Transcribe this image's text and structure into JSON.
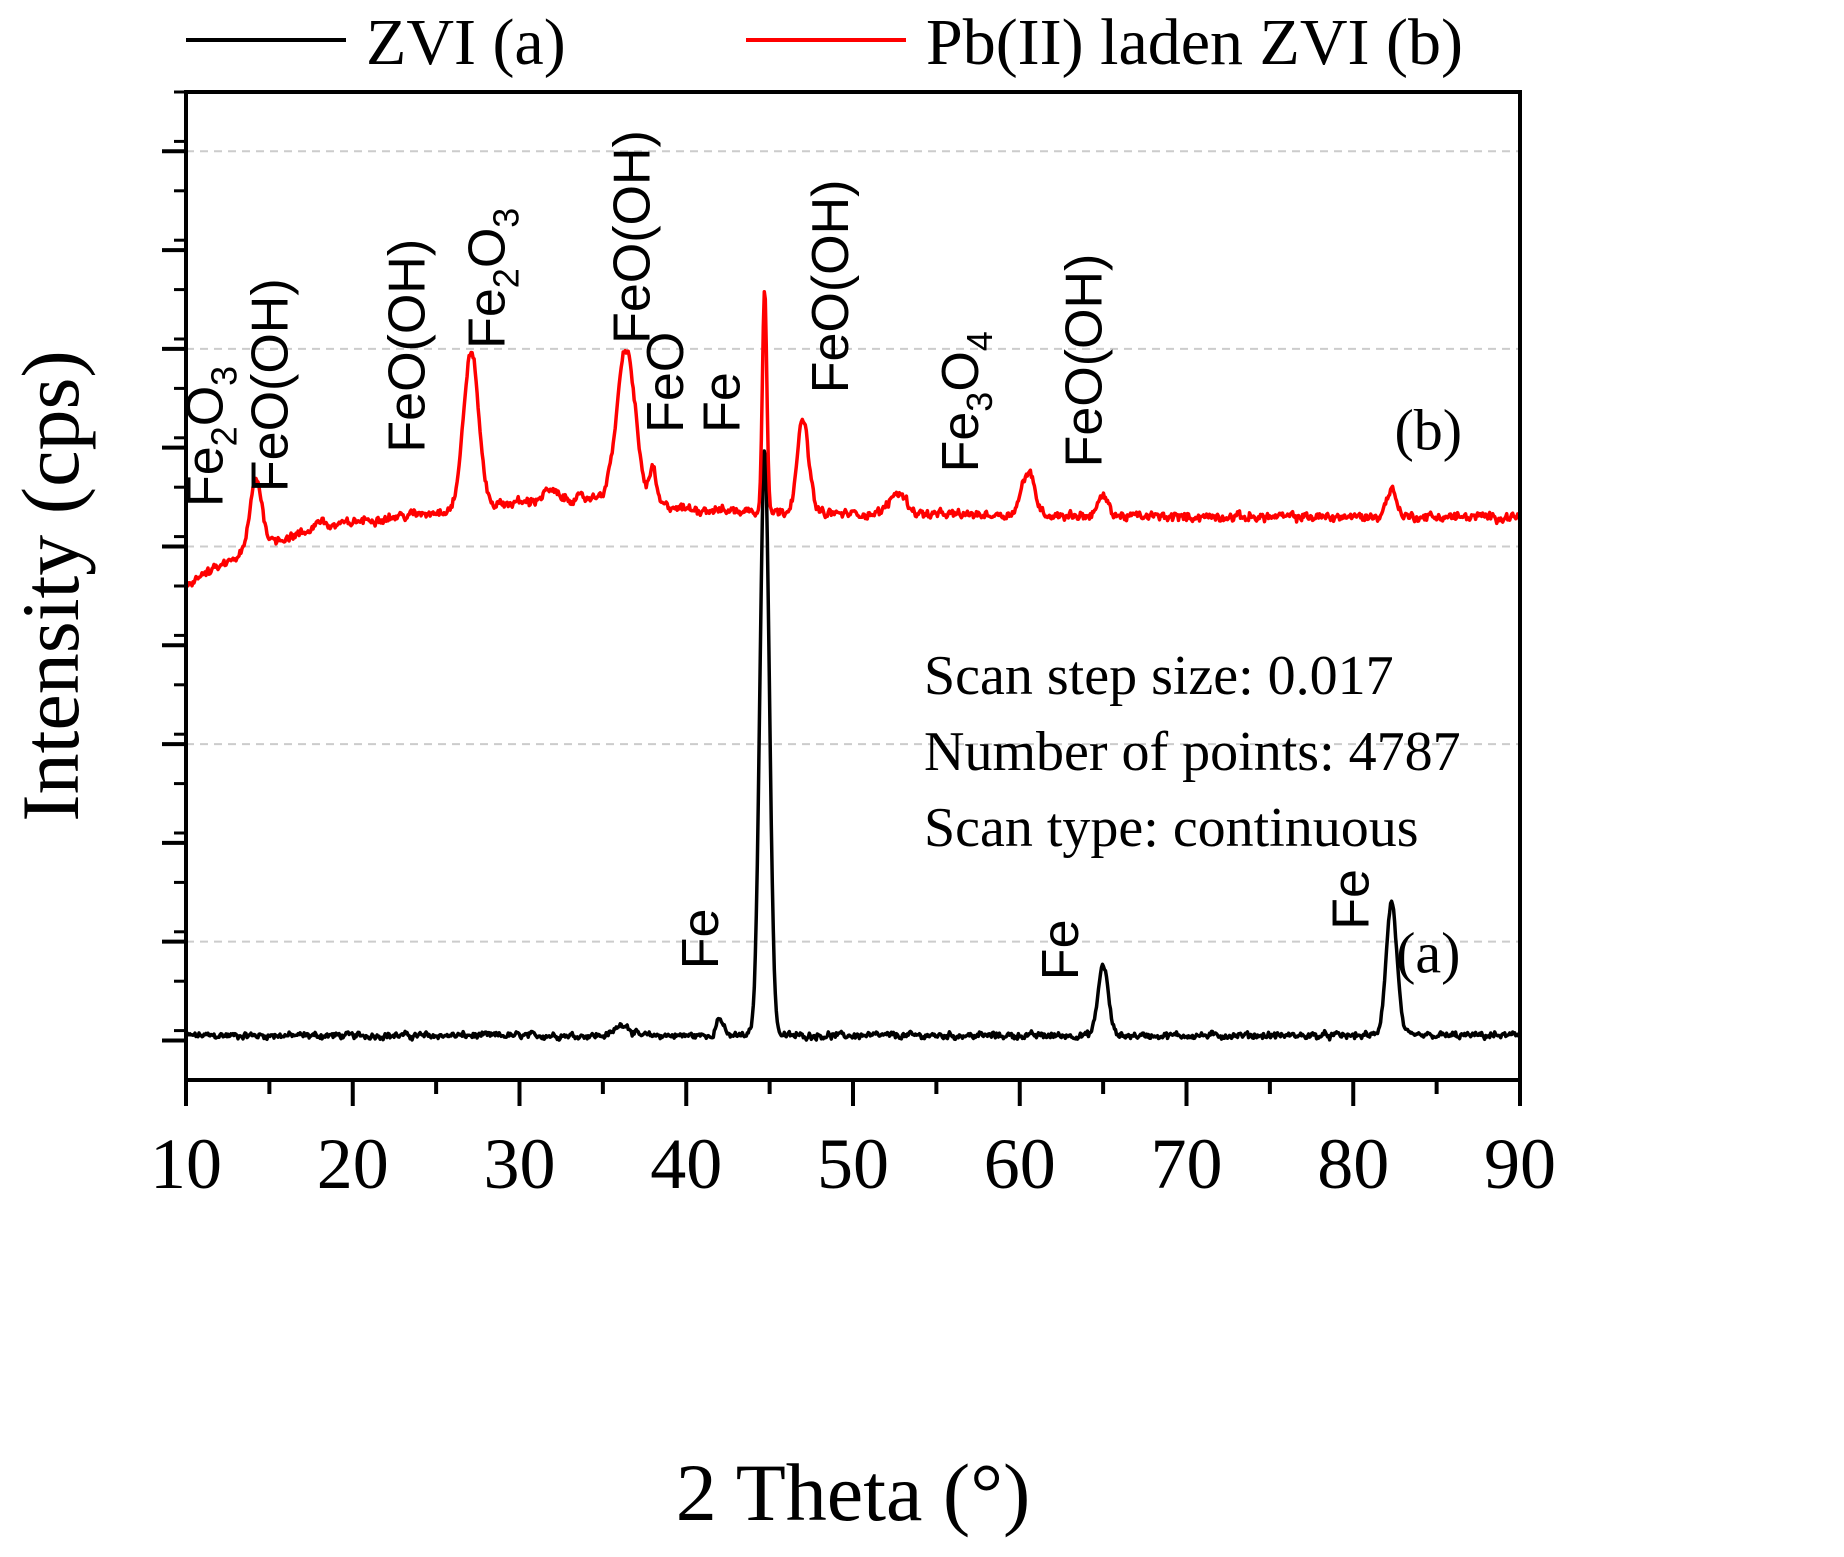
{
  "chart_data": {
    "type": "line",
    "title": "",
    "xlabel": "2 Theta (°)",
    "ylabel": "Intensity (cps)",
    "xlim": [
      10,
      90
    ],
    "x_ticks": [
      10,
      20,
      30,
      40,
      50,
      60,
      70,
      80,
      90
    ],
    "x_tick_labels": [
      "10",
      "20",
      "30",
      "40",
      "50",
      "60",
      "70",
      "80",
      "90"
    ],
    "ylim": [
      -0.4,
      9.6
    ],
    "y_major_ticks": [
      0,
      1,
      2,
      3,
      4,
      5,
      6,
      7,
      8,
      9
    ],
    "y_tick_labels_shown": false,
    "grid": "horizontal dashed",
    "legend_position": "top, above plot",
    "colors": {
      "series_a": "#000000",
      "series_b": "#ff0000",
      "grid": "#cccccc",
      "axis": "#000000"
    },
    "series": [
      {
        "name": "ZVI (a)",
        "id": "a",
        "color": "#000000",
        "baseline": 0.05,
        "noise": 0.045,
        "peaks": [
          {
            "x": 44.7,
            "height": 5.95,
            "width": 0.28
          },
          {
            "x": 65.0,
            "height": 0.72,
            "width": 0.3
          },
          {
            "x": 82.3,
            "height": 1.35,
            "width": 0.32
          },
          {
            "x": 42.0,
            "height": 0.18,
            "width": 0.2
          },
          {
            "x": 36.2,
            "height": 0.12,
            "width": 0.4
          }
        ]
      },
      {
        "name": "Pb(II) laden ZVI (b)",
        "id": "b",
        "color": "#ff0000",
        "baseline_points": [
          [
            10,
            4.62
          ],
          [
            15,
            5.05
          ],
          [
            20,
            5.25
          ],
          [
            25,
            5.35
          ],
          [
            30,
            5.45
          ],
          [
            35,
            5.5
          ],
          [
            40,
            5.38
          ],
          [
            45,
            5.35
          ],
          [
            50,
            5.33
          ],
          [
            60,
            5.32
          ],
          [
            70,
            5.3
          ],
          [
            90,
            5.3
          ]
        ],
        "noise": 0.06,
        "peaks": [
          {
            "x": 14.2,
            "height": 0.7,
            "width": 0.35
          },
          {
            "x": 27.1,
            "height": 1.58,
            "width": 0.45
          },
          {
            "x": 36.4,
            "height": 1.53,
            "width": 0.55
          },
          {
            "x": 38.0,
            "height": 0.35,
            "width": 0.2
          },
          {
            "x": 44.7,
            "height": 2.3,
            "width": 0.13
          },
          {
            "x": 47.0,
            "height": 0.93,
            "width": 0.35
          },
          {
            "x": 52.7,
            "height": 0.22,
            "width": 0.5
          },
          {
            "x": 60.5,
            "height": 0.43,
            "width": 0.4
          },
          {
            "x": 65.0,
            "height": 0.2,
            "width": 0.3
          },
          {
            "x": 82.3,
            "height": 0.28,
            "width": 0.3
          },
          {
            "x": 31.8,
            "height": 0.1,
            "width": 0.4
          },
          {
            "x": 18.0,
            "height": 0.1,
            "width": 0.3
          }
        ]
      }
    ],
    "legend": [
      {
        "label": "ZVI (a)",
        "color": "#000000"
      },
      {
        "label": "Pb(II) laden ZVI (b)",
        "color": "#ff0000"
      }
    ],
    "curve_labels": [
      {
        "text": "(b)",
        "x": 84.5,
        "y": 5.98
      },
      {
        "text": "(a)",
        "x": 84.5,
        "y": 0.69
      }
    ],
    "peak_annotations": [
      {
        "base": "Fe",
        "sub1": "2",
        "mid": "O",
        "sub2": "3",
        "x": 12.2,
        "y": 5.4
      },
      {
        "base": "FeO(OH)",
        "x": 16.1,
        "y": 5.55
      },
      {
        "base": "FeO(OH)",
        "x": 24.3,
        "y": 5.95
      },
      {
        "base": "Fe",
        "sub1": "2",
        "mid": "O",
        "sub2": "3",
        "x": 29.1,
        "y": 7.0
      },
      {
        "base": "FeO(OH)",
        "x": 37.8,
        "y": 7.05
      },
      {
        "base": "FeO",
        "x": 39.8,
        "y": 6.15
      },
      {
        "base": "Fe",
        "x": 43.2,
        "y": 6.15
      },
      {
        "base": "FeO(OH)",
        "x": 49.7,
        "y": 6.55
      },
      {
        "base": "Fe",
        "sub1": "3",
        "mid": "O",
        "sub2": "4",
        "x": 57.5,
        "y": 5.75
      },
      {
        "base": "FeO(OH)",
        "x": 64.9,
        "y": 5.8
      },
      {
        "base": "Fe",
        "x": 41.9,
        "y": 0.72
      },
      {
        "base": "Fe",
        "x": 63.5,
        "y": 0.61
      },
      {
        "base": "Fe",
        "x": 80.9,
        "y": 1.12
      }
    ],
    "info_text": [
      "Scan step size: 0.017",
      "Number of points: 4787",
      "Scan type: continuous"
    ]
  }
}
